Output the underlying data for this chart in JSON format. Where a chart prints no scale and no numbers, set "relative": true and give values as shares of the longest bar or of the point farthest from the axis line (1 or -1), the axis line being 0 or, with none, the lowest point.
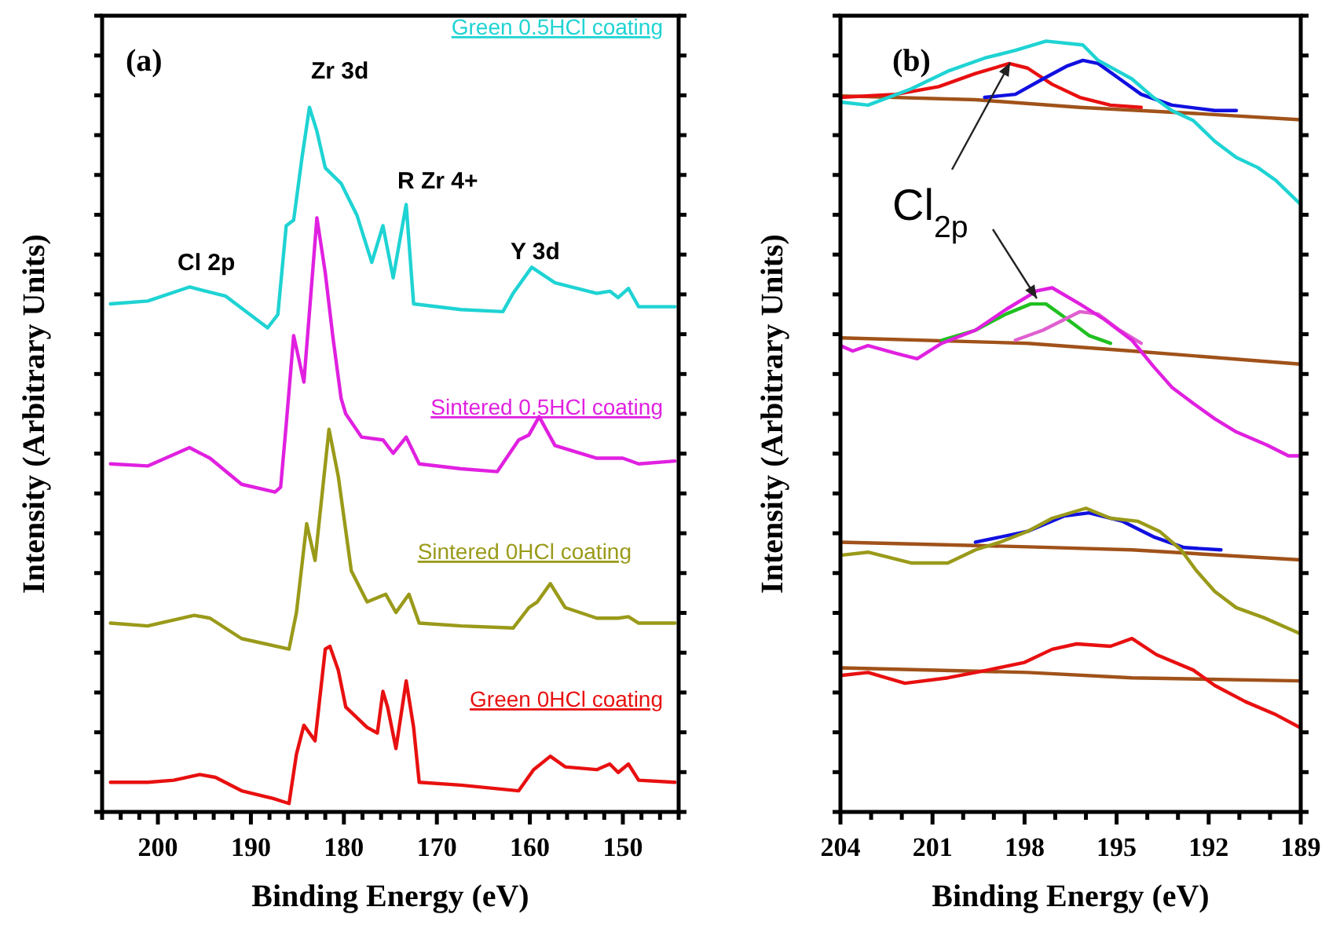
{
  "chart_data": [
    {
      "type": "line",
      "xlabel": "Binding Energy (eV)",
      "ylabel": "Intensity (Arbitrary Units)",
      "relative": true,
      "tick_labels": "x",
      "xlim": [
        206,
        144
      ],
      "xticks": [
        {
          "value": 206,
          "label": null
        },
        {
          "value": 204,
          "label": null
        },
        {
          "value": 202,
          "label": null
        },
        200,
        {
          "value": 198,
          "label": null
        },
        {
          "value": 196,
          "label": null
        },
        {
          "value": 194,
          "label": null
        },
        {
          "value": 192,
          "label": null
        },
        190,
        {
          "value": 188,
          "label": null
        },
        {
          "value": 186,
          "label": null
        },
        {
          "value": 184,
          "label": null
        },
        {
          "value": 182,
          "label": null
        },
        180,
        {
          "value": 178,
          "label": null
        },
        {
          "value": 176,
          "label": null
        },
        {
          "value": 174,
          "label": null
        },
        {
          "value": 172,
          "label": null
        },
        170,
        {
          "value": 168,
          "label": null
        },
        {
          "value": 166,
          "label": null
        },
        {
          "value": 164,
          "label": null
        },
        {
          "value": 162,
          "label": null
        },
        160,
        {
          "value": 158,
          "label": null
        },
        {
          "value": 156,
          "label": null
        },
        {
          "value": 154,
          "label": null
        },
        {
          "value": 152,
          "label": null
        },
        150,
        {
          "value": 148,
          "label": null
        },
        {
          "value": 146,
          "label": null
        },
        {
          "value": 144,
          "label": null
        }
      ],
      "annotations": [
        "(a)",
        "Zr 3d",
        "R Zr 4+",
        "Y 3d",
        "Cl 2p"
      ],
      "series": [
        {
          "name": "Green 0.5HCl coating",
          "color": "#1fd3d3",
          "x": [
            205.1,
            201.1,
            196.6,
            192.7,
            188.2,
            187.1,
            186.2,
            185.4,
            184.5,
            183.7,
            182.9,
            182.0,
            180.3,
            178.6,
            177.0,
            175.8,
            174.7,
            173.3,
            172.5,
            167.4,
            162.9,
            161.8,
            159.8,
            157.3,
            152.8,
            151.4,
            150.5,
            149.4,
            148.3,
            144.4
          ],
          "values": [
            0.721,
            0.725,
            0.745,
            0.732,
            0.687,
            0.706,
            0.832,
            0.84,
            0.929,
            1,
            0.966,
            0.914,
            0.892,
            0.847,
            0.78,
            0.832,
            0.758,
            0.862,
            0.721,
            0.713,
            0.71,
            0.736,
            0.773,
            0.751,
            0.736,
            0.739,
            0.73,
            0.743,
            0.717,
            0.717
          ]
        },
        {
          "name": "Sintered 0.5HCl coating",
          "color": "#e020e0",
          "x": [
            205.1,
            201.1,
            196.6,
            194.4,
            191.0,
            187.4,
            186.8,
            186.2,
            185.4,
            184.3,
            182.9,
            182.0,
            181.2,
            180.3,
            179.8,
            178.1,
            175.8,
            174.7,
            173.3,
            171.9,
            167.4,
            163.5,
            161.2,
            160.1,
            159.0,
            157.3,
            152.8,
            150.0,
            148.3,
            144.4
          ],
          "values": [
            0.494,
            0.491,
            0.517,
            0.502,
            0.465,
            0.454,
            0.461,
            0.55,
            0.676,
            0.61,
            0.843,
            0.765,
            0.676,
            0.587,
            0.565,
            0.532,
            0.528,
            0.509,
            0.532,
            0.494,
            0.487,
            0.483,
            0.528,
            0.535,
            0.561,
            0.52,
            0.502,
            0.502,
            0.494,
            0.498
          ]
        },
        {
          "name": "Sintered 0HCl coating",
          "color": "#9a9a1a",
          "x": [
            205.1,
            201.1,
            196.1,
            194.4,
            191.0,
            185.9,
            185.1,
            184.0,
            183.1,
            181.6,
            180.6,
            179.2,
            177.5,
            175.5,
            174.4,
            173.0,
            171.9,
            167.4,
            161.8,
            160.1,
            159.2,
            157.8,
            156.2,
            152.8,
            150.5,
            149.4,
            148.3,
            144.4
          ],
          "values": [
            0.268,
            0.264,
            0.279,
            0.275,
            0.246,
            0.231,
            0.283,
            0.409,
            0.357,
            0.543,
            0.476,
            0.342,
            0.298,
            0.309,
            0.283,
            0.309,
            0.268,
            0.264,
            0.261,
            0.29,
            0.298,
            0.324,
            0.29,
            0.275,
            0.275,
            0.277,
            0.268,
            0.268
          ]
        },
        {
          "name": "Green 0HCl coating",
          "color": "#e81010",
          "x": [
            205.1,
            201.1,
            198.3,
            195.5,
            193.8,
            191.0,
            187.6,
            185.9,
            185.1,
            184.3,
            183.1,
            182.0,
            181.5,
            180.6,
            179.8,
            177.5,
            176.4,
            175.8,
            175.3,
            174.4,
            173.3,
            172.5,
            171.9,
            167.4,
            161.2,
            159.6,
            157.8,
            156.2,
            152.8,
            151.4,
            150.5,
            149.4,
            148.3,
            144.4
          ],
          "values": [
            0.042,
            0.042,
            0.045,
            0.053,
            0.049,
            0.03,
            0.019,
            0.012,
            0.082,
            0.123,
            0.101,
            0.231,
            0.235,
            0.201,
            0.149,
            0.12,
            0.112,
            0.171,
            0.149,
            0.09,
            0.186,
            0.12,
            0.042,
            0.038,
            0.03,
            0.06,
            0.079,
            0.064,
            0.06,
            0.068,
            0.056,
            0.068,
            0.045,
            0.042
          ]
        }
      ]
    },
    {
      "type": "line",
      "xlabel": "Binding Energy (eV)",
      "ylabel": "Intensity (Arbitrary Units)",
      "relative": true,
      "tick_labels": "x",
      "xlim": [
        204,
        189
      ],
      "xticks": [
        204,
        {
          "value": 203,
          "label": null
        },
        {
          "value": 202,
          "label": null
        },
        201,
        {
          "value": 200,
          "label": null
        },
        {
          "value": 199,
          "label": null
        },
        198,
        {
          "value": 197,
          "label": null
        },
        {
          "value": 196,
          "label": null
        },
        195,
        {
          "value": 194,
          "label": null
        },
        {
          "value": 193,
          "label": null
        },
        192,
        {
          "value": 191,
          "label": null
        },
        {
          "value": 190,
          "label": null
        },
        189
      ],
      "annotations": [
        "(b)",
        "Cl$_{2p}$"
      ],
      "series": [
        {
          "color": "#a0521a",
          "x": [
            204,
            199.6,
            196.2,
            192.8,
            189
          ],
          "values": [
            0.929,
            0.924,
            0.914,
            0.907,
            0.898
          ]
        },
        {
          "color": "#e81010",
          "x": [
            204,
            202.2,
            200.8,
            199.6,
            198.5,
            197.9,
            197.1,
            196.2,
            195.2,
            194.2
          ],
          "values": [
            0.927,
            0.931,
            0.941,
            0.958,
            0.971,
            0.965,
            0.944,
            0.927,
            0.917,
            0.914
          ]
        },
        {
          "color": "#1010e0",
          "x": [
            199.3,
            198.3,
            197.4,
            196.6,
            196.1,
            195.6,
            194.9,
            194.2,
            193.2,
            191.8,
            191.1
          ],
          "values": [
            0.927,
            0.931,
            0.951,
            0.968,
            0.975,
            0.971,
            0.951,
            0.931,
            0.917,
            0.91,
            0.91
          ]
        },
        {
          "color": "#1fd3d3",
          "x": [
            204,
            203.1,
            201.7,
            200.5,
            199.3,
            198.3,
            197.3,
            196.1,
            195.6,
            194.5,
            193.8,
            193.2,
            192.5,
            191.8,
            191.1,
            190.4,
            189.8,
            189
          ],
          "values": [
            0.921,
            0.917,
            0.938,
            0.961,
            0.978,
            0.988,
            1,
            0.995,
            0.975,
            0.951,
            0.927,
            0.91,
            0.897,
            0.87,
            0.849,
            0.836,
            0.819,
            0.788
          ]
        },
        {
          "color": "#a0521a",
          "x": [
            204,
            197.9,
            194.5,
            189
          ],
          "values": [
            0.615,
            0.608,
            0.598,
            0.581
          ]
        },
        {
          "color": "#20c020",
          "x": [
            200.7,
            199.6,
            198.6,
            197.8,
            197.3,
            196.6,
            195.9,
            195.2
          ],
          "values": [
            0.612,
            0.625,
            0.646,
            0.659,
            0.659,
            0.639,
            0.618,
            0.608
          ]
        },
        {
          "color": "#e060d0",
          "x": [
            198.3,
            197.4,
            196.2,
            195.6,
            194.9,
            194.2
          ],
          "values": [
            0.612,
            0.625,
            0.649,
            0.646,
            0.625,
            0.608
          ]
        },
        {
          "color": "#e020e0",
          "x": [
            204,
            203.6,
            203.1,
            202.2,
            201.5,
            200.7,
            199.6,
            198.6,
            197.6,
            197.1,
            196.2,
            195.4,
            194.5,
            193.8,
            193.2,
            192.5,
            191.8,
            191.1,
            190.1,
            189.4,
            189
          ],
          "values": [
            0.605,
            0.598,
            0.605,
            0.595,
            0.588,
            0.608,
            0.625,
            0.652,
            0.676,
            0.68,
            0.659,
            0.639,
            0.612,
            0.578,
            0.551,
            0.53,
            0.51,
            0.493,
            0.476,
            0.462,
            0.462
          ]
        },
        {
          "color": "#a0521a",
          "x": [
            204,
            197.9,
            194.5,
            189
          ],
          "values": [
            0.35,
            0.344,
            0.34,
            0.327
          ]
        },
        {
          "color": "#1010e0",
          "x": [
            199.6,
            197.9,
            196.7,
            195.9,
            194.8,
            193.8,
            192.8,
            191.6
          ],
          "values": [
            0.35,
            0.364,
            0.384,
            0.388,
            0.377,
            0.357,
            0.343,
            0.34
          ]
        },
        {
          "color": "#9a9a1a",
          "x": [
            204,
            203.1,
            201.7,
            200.5,
            199.6,
            198.8,
            197.9,
            197.1,
            196.0,
            195.2,
            194.3,
            193.6,
            192.9,
            192.4,
            191.8,
            191.1,
            190.2,
            189
          ],
          "values": [
            0.333,
            0.337,
            0.323,
            0.323,
            0.34,
            0.35,
            0.364,
            0.381,
            0.394,
            0.381,
            0.377,
            0.364,
            0.34,
            0.313,
            0.286,
            0.265,
            0.252,
            0.231
          ]
        },
        {
          "color": "#a0521a",
          "x": [
            204,
            197.9,
            194.5,
            189
          ],
          "values": [
            0.187,
            0.181,
            0.174,
            0.17
          ]
        },
        {
          "color": "#e81010",
          "x": [
            204,
            203.1,
            201.9,
            200.5,
            199.2,
            198.0,
            197.1,
            196.3,
            195.2,
            194.5,
            193.7,
            192.5,
            191.8,
            190.8,
            189.8,
            189
          ],
          "values": [
            0.177,
            0.181,
            0.167,
            0.174,
            0.184,
            0.194,
            0.211,
            0.218,
            0.215,
            0.225,
            0.204,
            0.184,
            0.164,
            0.143,
            0.126,
            0.109
          ]
        }
      ]
    }
  ]
}
